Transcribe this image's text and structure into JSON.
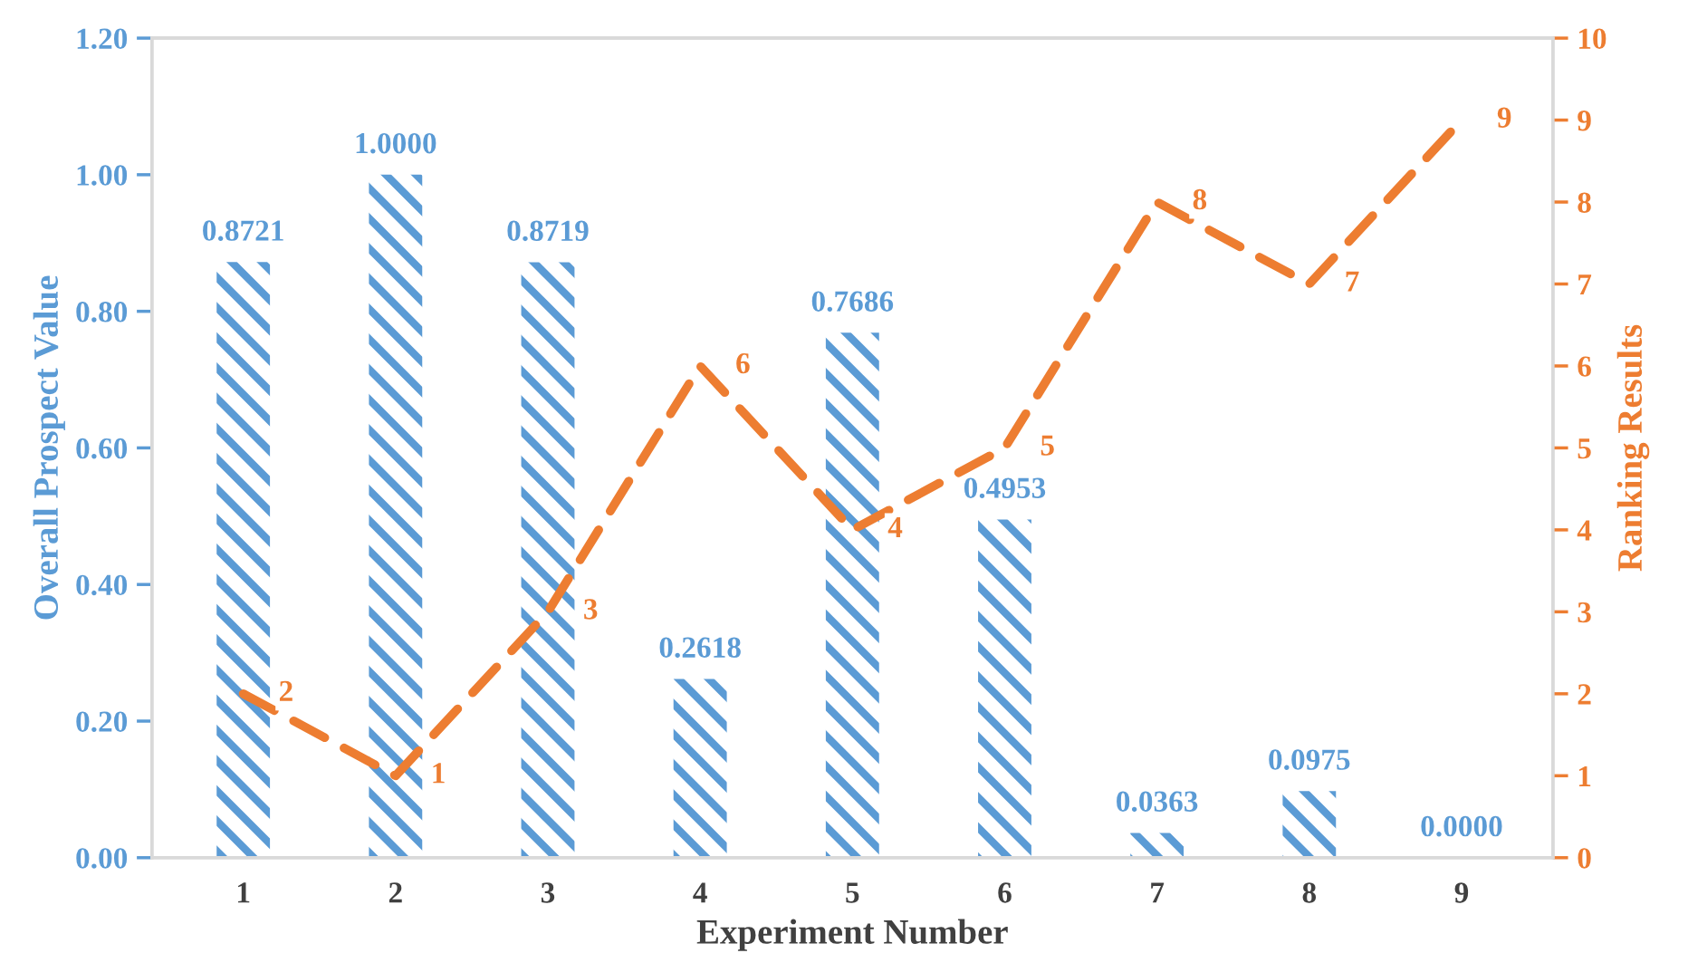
{
  "chart_data": {
    "type": "bar",
    "xlabel": "Experiment Number",
    "ylabel": "Overall Prospect Value",
    "y2label": "Ranking Results",
    "categories": [
      "1",
      "2",
      "3",
      "4",
      "5",
      "6",
      "7",
      "8",
      "9"
    ],
    "series": [
      {
        "color": "#5b9bd5",
        "values": [
          0.8721,
          1.0,
          0.8719,
          0.2618,
          0.7686,
          0.4953,
          0.0363,
          0.0975,
          0.0
        ],
        "value_labels": [
          "0.8721",
          "1.0000",
          "0.8719",
          "0.2618",
          "0.7686",
          "0.4953",
          "0.0363",
          "0.0975",
          "0.0000"
        ]
      },
      {
        "type": "line",
        "axis": "y2",
        "color": "#ed7d31",
        "line_style": "dashed",
        "values": [
          2,
          1,
          3,
          6,
          4,
          5,
          8,
          7,
          9
        ],
        "value_labels": [
          "2",
          "1",
          "3",
          "6",
          "4",
          "5",
          "8",
          "7",
          "9"
        ]
      }
    ],
    "ylim": [
      0,
      1.2
    ],
    "yticks": [
      {
        "value": 0,
        "label": "0.00"
      },
      {
        "value": 0.2,
        "label": "0.20"
      },
      {
        "value": 0.4,
        "label": "0.40"
      },
      {
        "value": 0.6,
        "label": "0.60"
      },
      {
        "value": 0.8,
        "label": "0.80"
      },
      {
        "value": 1.0,
        "label": "1.00"
      },
      {
        "value": 1.2,
        "label": "1.20"
      }
    ],
    "y2lim": [
      0,
      10
    ],
    "y2ticks": [
      0,
      1,
      2,
      3,
      4,
      5,
      6,
      7,
      8,
      9,
      10
    ],
    "grid": false,
    "legend": false
  }
}
